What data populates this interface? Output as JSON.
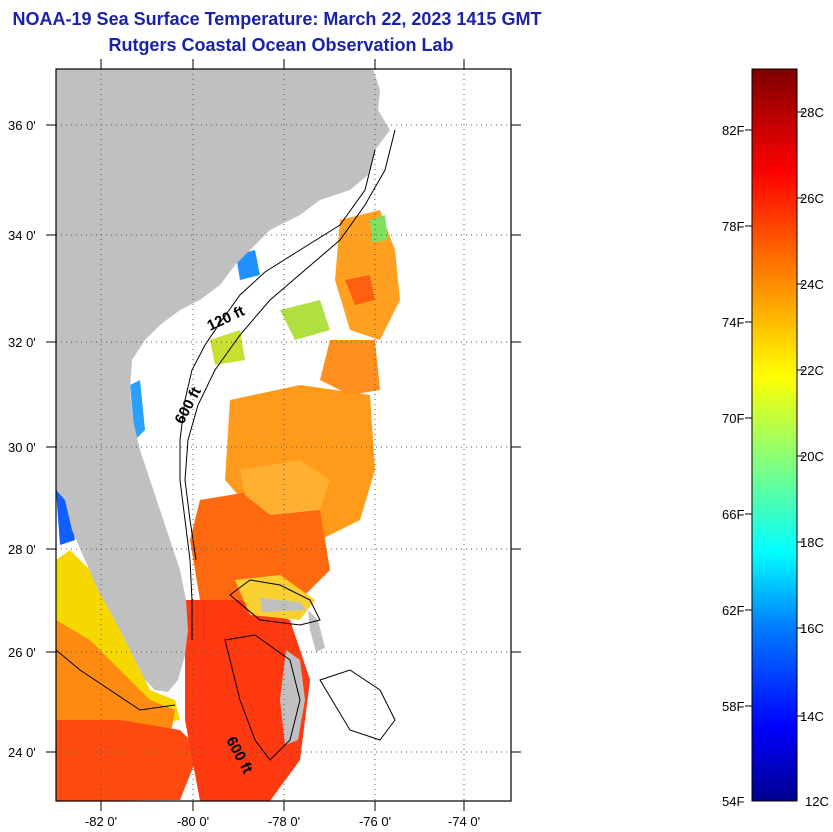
{
  "title": {
    "line1": "NOAA-19 Sea Surface Temperature:  March 22, 2023 1415 GMT",
    "line2": "Rutgers Coastal Ocean Observation Lab"
  },
  "map": {
    "lat_labels": [
      "36 0'",
      "34 0'",
      "32 0'",
      "30 0'",
      "28 0'",
      "26 0'",
      "24 0'"
    ],
    "lon_labels": [
      "-82 0'",
      "-80 0'",
      "-78 0'",
      "-76 0'",
      "-74 0'"
    ],
    "contours": [
      "120 ft",
      "600 ft",
      "600 ft"
    ]
  },
  "colorbar": {
    "fahrenheit_labels": [
      "82F",
      "78F",
      "74F",
      "70F",
      "66F",
      "62F",
      "58F",
      "54F"
    ],
    "celsius_labels": [
      "28C",
      "26C",
      "24C",
      "22C",
      "20C",
      "18C",
      "16C",
      "14C",
      "12C"
    ]
  },
  "colors": {
    "title": "#1a23a8",
    "land": "#c0c0c0",
    "ocean_cloud": "#ffffff"
  }
}
